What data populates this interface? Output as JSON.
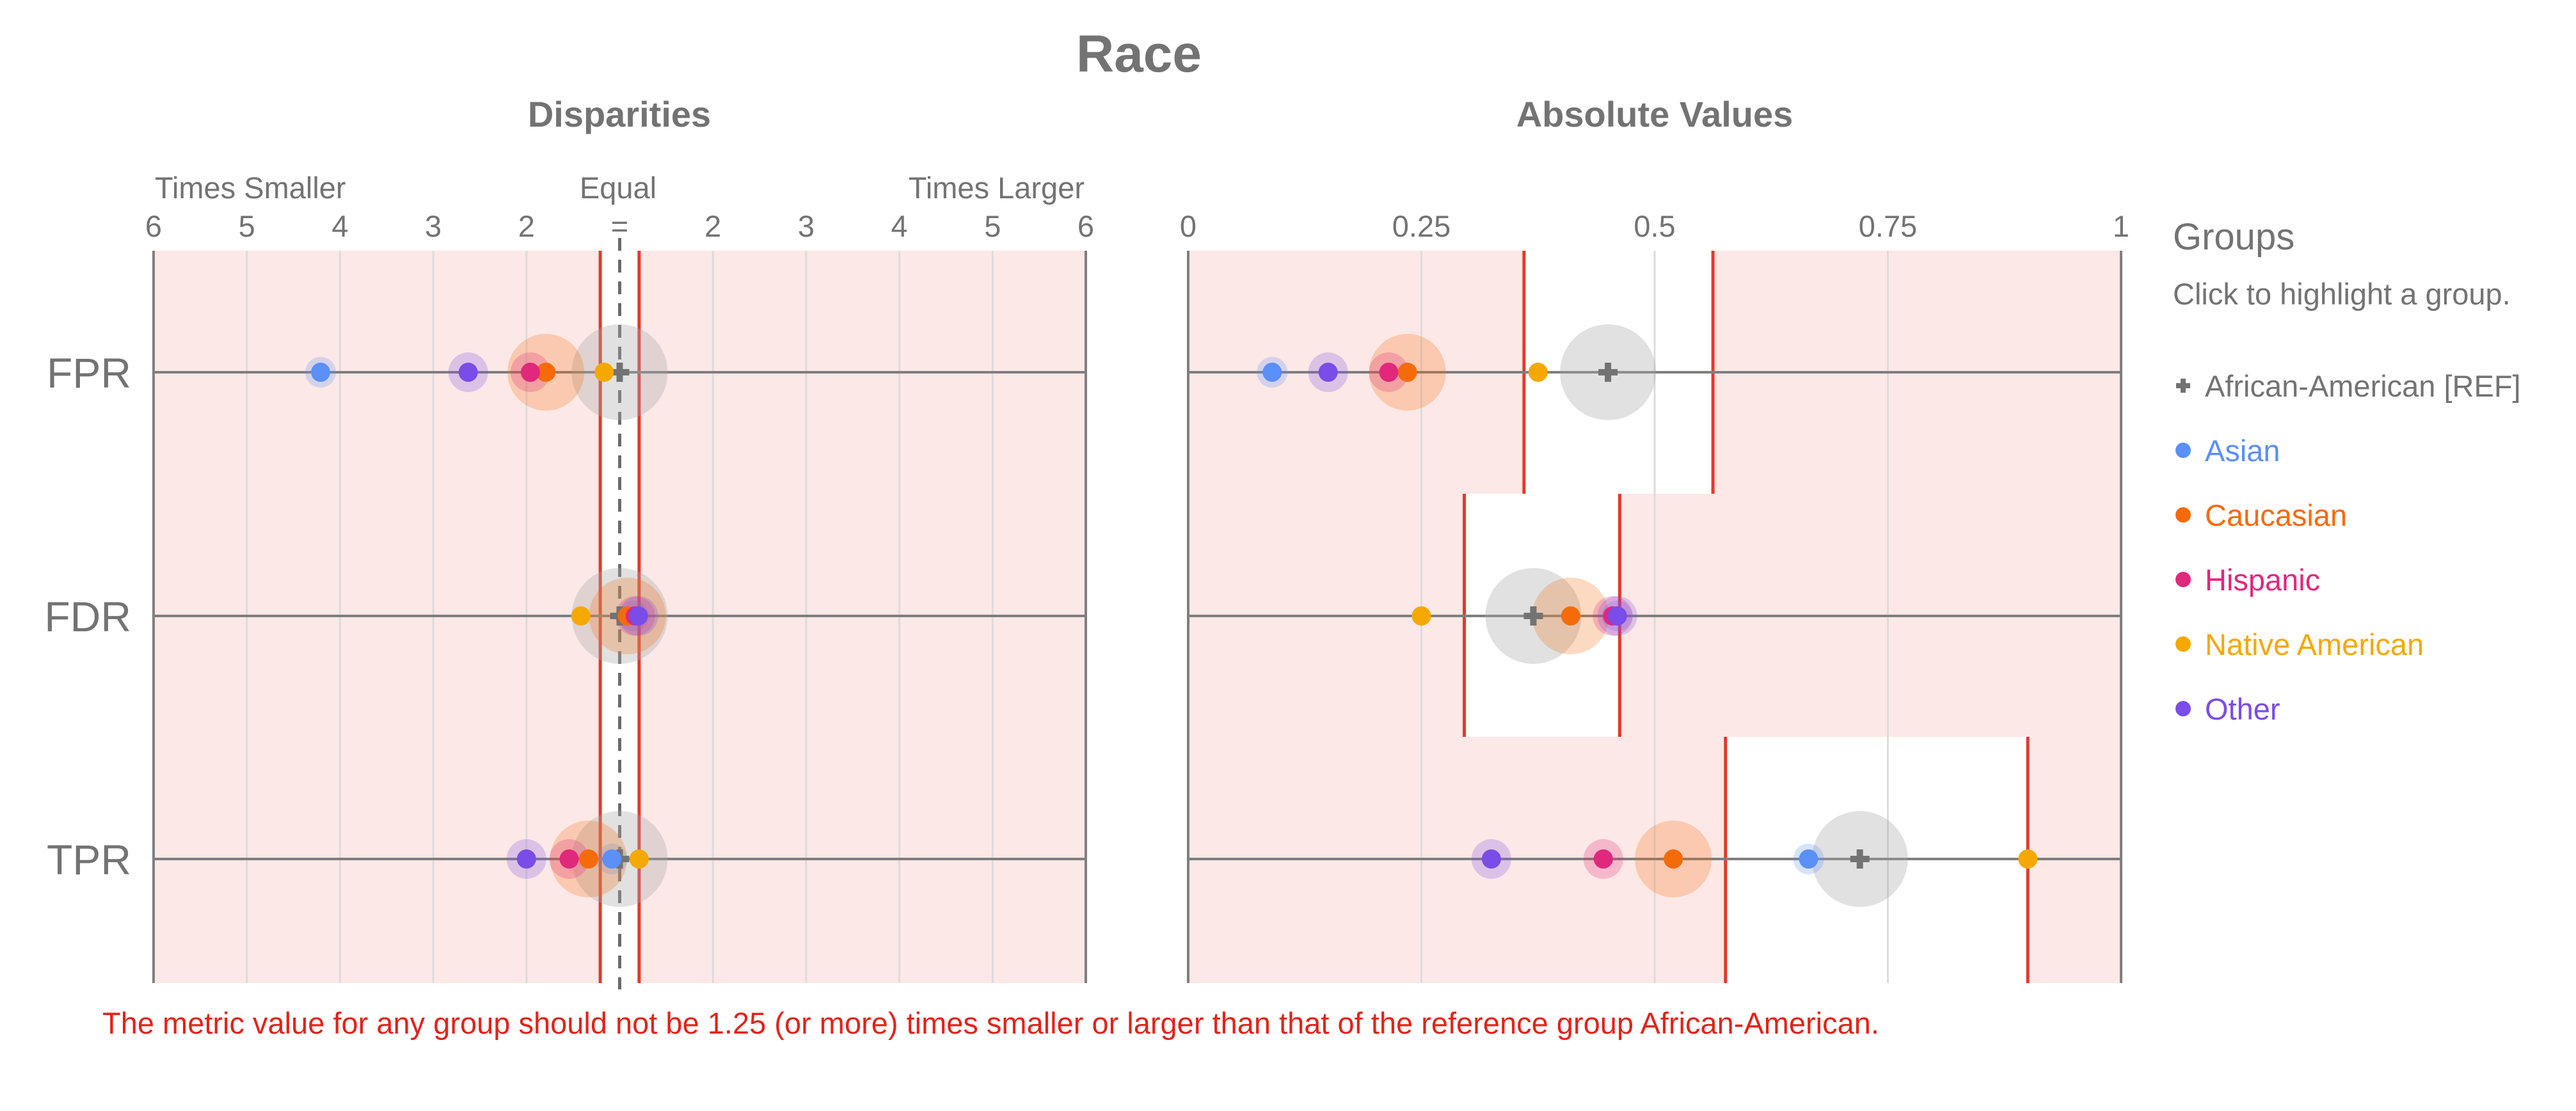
{
  "title": "Race",
  "colors": {
    "reference": "#737373",
    "threshold": "#e3392c",
    "fail_band": "#fce8e6",
    "axis": "#7f7f7f",
    "grid": "#dcdcdc",
    "footnote": "#e2231a"
  },
  "disparities": {
    "title": "Disparities",
    "left_label": "Times Smaller",
    "center_label": "Equal",
    "right_label": "Times Larger",
    "tick_labels": [
      "6",
      "5",
      "4",
      "3",
      "2",
      "=",
      "2",
      "3",
      "4",
      "5",
      "6"
    ]
  },
  "absolute": {
    "title": "Absolute Values",
    "tick_labels": [
      "0",
      "0.25",
      "0.5",
      "0.75",
      "1"
    ]
  },
  "legend": {
    "title": "Groups",
    "subtitle": "Click to highlight a group.",
    "items": [
      {
        "label": "African-American [REF]",
        "color": "#737373",
        "marker": "cross"
      },
      {
        "label": "Asian",
        "color": "#5b8ff9",
        "marker": "dot"
      },
      {
        "label": "Caucasian",
        "color": "#f56b0a",
        "marker": "dot"
      },
      {
        "label": "Hispanic",
        "color": "#e0287d",
        "marker": "dot"
      },
      {
        "label": "Native American",
        "color": "#f5a800",
        "marker": "dot"
      },
      {
        "label": "Other",
        "color": "#7a4ce8",
        "marker": "dot"
      }
    ]
  },
  "footnote": "The metric value for any group should not be 1.25 (or more) times smaller or larger than that of the reference group African-American.",
  "chart_data": [
    {
      "type": "scatter",
      "title": "Disparities",
      "xlim": [
        -6,
        6
      ],
      "x_scale": "disparity (equal = 1, signed times smaller/larger)",
      "threshold": 1.25,
      "categories": [
        "FPR",
        "FDR",
        "TPR"
      ],
      "series": [
        {
          "name": "African-American [REF]",
          "values": [
            1.0,
            1.0,
            1.0
          ]
        },
        {
          "name": "Asian",
          "values": [
            -4.85,
            1.18,
            -1.1
          ]
        },
        {
          "name": "Caucasian",
          "values": [
            -1.95,
            1.1,
            -1.4
          ]
        },
        {
          "name": "Hispanic",
          "values": [
            -2.15,
            1.2,
            -1.65
          ]
        },
        {
          "name": "Native American",
          "values": [
            -1.2,
            -1.5,
            1.25
          ]
        },
        {
          "name": "Other",
          "values": [
            -2.95,
            1.24,
            -2.2
          ]
        }
      ]
    },
    {
      "type": "scatter",
      "title": "Absolute Values",
      "xlim": [
        0,
        1
      ],
      "categories": [
        "FPR",
        "FDR",
        "TPR"
      ],
      "series": [
        {
          "name": "African-American [REF]",
          "values": [
            0.45,
            0.37,
            0.72
          ]
        },
        {
          "name": "Asian",
          "values": [
            0.09,
            0.46,
            0.665
          ]
        },
        {
          "name": "Caucasian",
          "values": [
            0.235,
            0.41,
            0.52
          ]
        },
        {
          "name": "Hispanic",
          "values": [
            0.215,
            0.455,
            0.445
          ]
        },
        {
          "name": "Native American",
          "values": [
            0.375,
            0.25,
            0.9
          ]
        },
        {
          "name": "Other",
          "values": [
            0.15,
            0.46,
            0.325
          ]
        }
      ],
      "threshold_bounds": {
        "FPR": [
          0.36,
          0.5625
        ],
        "FDR": [
          0.296,
          0.4625
        ],
        "TPR": [
          0.576,
          0.9
        ]
      }
    }
  ]
}
